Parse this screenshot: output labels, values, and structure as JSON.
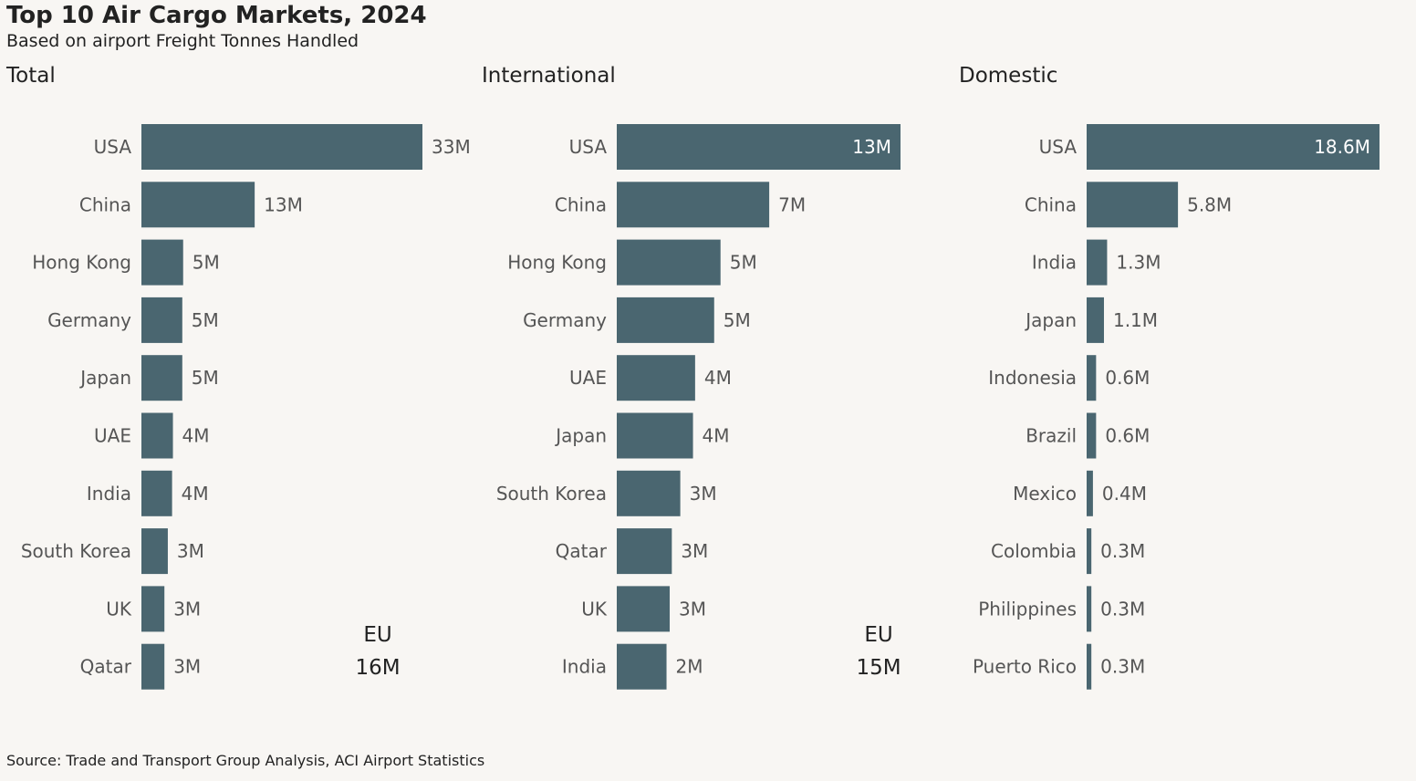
{
  "title": "Top 10 Air Cargo Markets, 2024",
  "subtitle": "Based on airport Freight Tonnes Handled",
  "source": "Source: Trade and Transport Group Analysis, ACI Airport Statistics",
  "colors": {
    "bar": "#4a6670",
    "background": "#f8f6f3",
    "label": "#555555",
    "inside_label": "#ffffff"
  },
  "chart_data": [
    {
      "type": "bar",
      "orientation": "horizontal",
      "title": "Total",
      "categories": [
        "USA",
        "China",
        "Hong Kong",
        "Germany",
        "Japan",
        "UAE",
        "India",
        "South Korea",
        "UK",
        "Qatar"
      ],
      "values": [
        33.0,
        13.3,
        4.9,
        4.8,
        4.8,
        3.7,
        3.6,
        3.1,
        2.7,
        2.7
      ],
      "value_labels": [
        "33M",
        "13M",
        "5M",
        "5M",
        "5M",
        "4M",
        "4M",
        "3M",
        "3M",
        "3M"
      ],
      "annotation": {
        "label": "EU",
        "value": "16M"
      }
    },
    {
      "type": "bar",
      "orientation": "horizontal",
      "title": "International",
      "categories": [
        "USA",
        "China",
        "Hong Kong",
        "Germany",
        "UAE",
        "Japan",
        "South Korea",
        "Qatar",
        "UK",
        "India"
      ],
      "values": [
        13.4,
        7.2,
        4.9,
        4.6,
        3.7,
        3.6,
        3.0,
        2.6,
        2.5,
        2.35
      ],
      "value_labels": [
        "13M",
        "7M",
        "5M",
        "5M",
        "4M",
        "4M",
        "3M",
        "3M",
        "3M",
        "2M"
      ],
      "annotation": {
        "label": "EU",
        "value": "15M"
      }
    },
    {
      "type": "bar",
      "orientation": "horizontal",
      "title": "Domestic",
      "categories": [
        "USA",
        "China",
        "India",
        "Japan",
        "Indonesia",
        "Brazil",
        "Mexico",
        "Colombia",
        "Philippines",
        "Puerto Rico"
      ],
      "values": [
        18.6,
        5.8,
        1.3,
        1.1,
        0.6,
        0.6,
        0.4,
        0.3,
        0.3,
        0.3
      ],
      "value_labels": [
        "18.6M",
        "5.8M",
        "1.3M",
        "1.1M",
        "0.6M",
        "0.6M",
        "0.4M",
        "0.3M",
        "0.3M",
        "0.3M"
      ]
    }
  ]
}
